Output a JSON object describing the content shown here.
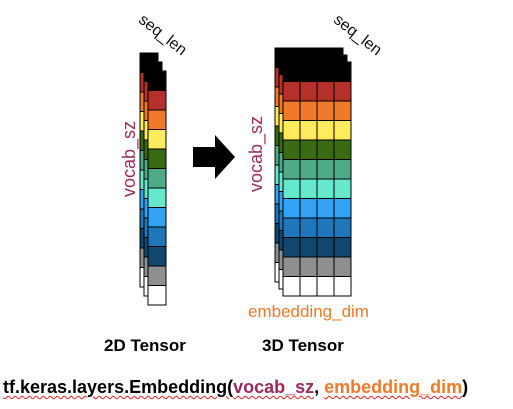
{
  "colors": {
    "palette": [
      "#000000",
      "#b5302a",
      "#f07a2a",
      "#ffec5e",
      "#3a6b12",
      "#4faa88",
      "#66e8cc",
      "#33a2f5",
      "#1f76bb",
      "#12476d",
      "#8f8f8f",
      "#ffffff"
    ],
    "vocab_label": "#9b2a5c",
    "embedding_label": "#f07a2a"
  },
  "tensor2d": {
    "caption": "2D Tensor",
    "seq_label": "seq_len",
    "vocab_label": "vocab_sz"
  },
  "tensor3d": {
    "caption": "3D Tensor",
    "seq_label": "seq_len",
    "vocab_label": "vocab_sz",
    "embedding_label": "embedding_dim"
  },
  "arrow": {
    "icon": "right-arrow-icon"
  },
  "formula": {
    "prefix": "tf.keras.layers.Embedding(",
    "arg1": "vocab_sz",
    "sep": ", ",
    "arg2": "embedding_dim",
    "suffix": ")"
  }
}
